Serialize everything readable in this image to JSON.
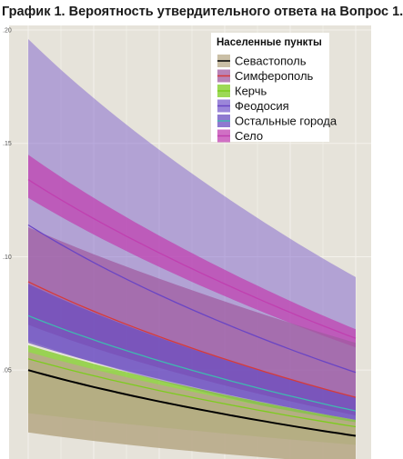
{
  "chart_data": {
    "type": "area",
    "title": "График 1. Вероятность утвердительного ответа на Вопрос 1.",
    "xlabel": "",
    "ylabel": "",
    "xlim": [
      0,
      1
    ],
    "ylim": [
      0.02,
      0.2
    ],
    "yticks": [
      {
        "value": 0.05,
        "label": ".05"
      },
      {
        "value": 0.1,
        "label": ".10"
      },
      {
        "value": 0.15,
        "label": ".15"
      },
      {
        "value": 0.2,
        "label": ".20"
      }
    ],
    "x": [
      0,
      1
    ],
    "grid": true,
    "legend": {
      "title": "Населенные пункты",
      "position": "top-right"
    },
    "series": [
      {
        "name": "Севастополь",
        "color": "#000000",
        "fill": "#b8aa88",
        "line": [
          0.05,
          0.021
        ],
        "ribbon_low": [
          0.0225,
          0.0085
        ],
        "ribbon_high": [
          0.058,
          0.027
        ]
      },
      {
        "name": "Симферополь",
        "color": "#d63a3a",
        "fill": "#a05aa0",
        "line": [
          0.089,
          0.038
        ],
        "ribbon_low": [
          0.07,
          0.03
        ],
        "ribbon_high": [
          0.113,
          0.062
        ]
      },
      {
        "name": "Керчь",
        "color": "#7ccc1e",
        "fill": "#7ccc1e",
        "line": [
          0.055,
          0.025
        ],
        "ribbon_low": [
          0.031,
          0.017
        ],
        "ribbon_high": [
          0.061,
          0.028
        ]
      },
      {
        "name": "Феодосия",
        "color": "#6a45c4",
        "fill": "#7a5dcc",
        "line": [
          0.114,
          0.049
        ],
        "ribbon_low": [
          0.063,
          0.026
        ],
        "ribbon_high": [
          0.196,
          0.091
        ]
      },
      {
        "name": "Остальные города",
        "color": "#40b8b0",
        "fill": "#6a4cc0",
        "line": [
          0.074,
          0.032
        ],
        "ribbon_low": [
          0.062,
          0.028
        ],
        "ribbon_high": [
          0.088,
          0.038
        ]
      },
      {
        "name": "Село",
        "color": "#c040b0",
        "fill": "#c040b0",
        "line": [
          0.134,
          0.064
        ],
        "ribbon_low": [
          0.126,
          0.06
        ],
        "ribbon_high": [
          0.145,
          0.068
        ]
      }
    ]
  }
}
